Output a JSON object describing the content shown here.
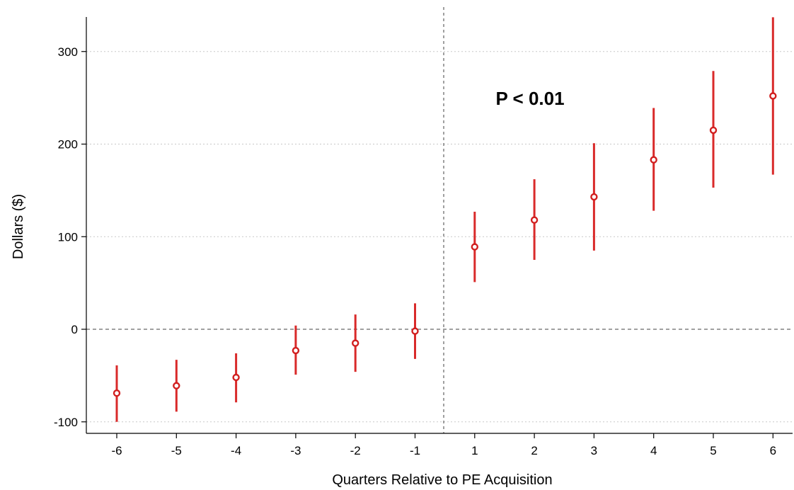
{
  "chart_data": {
    "type": "scatter",
    "subtype": "coefficient-plot-with-error-bars",
    "title": "",
    "xlabel": "Quarters Relative to PE Acquisition",
    "ylabel": "Dollars ($)",
    "categories": [
      "-6",
      "-5",
      "-4",
      "-3",
      "-2",
      "-1",
      "1",
      "2",
      "3",
      "4",
      "5",
      "6"
    ],
    "estimates": [
      -69,
      -61,
      -52,
      -23,
      -15,
      -2,
      89,
      118,
      143,
      183,
      215,
      252
    ],
    "ci_lower": [
      -100,
      -89,
      -79,
      -49,
      -46,
      -32,
      51,
      75,
      85,
      128,
      153,
      167
    ],
    "ci_upper": [
      -39,
      -33,
      -26,
      4,
      16,
      28,
      127,
      162,
      201,
      239,
      279,
      337
    ],
    "yticks": [
      "-100",
      "0",
      "100",
      "200",
      "300"
    ],
    "ylim": [
      -110,
      345
    ],
    "grid": "horizontal-dotted",
    "reference_lines": {
      "y_zero": "dashed",
      "x_between": [
        "-1",
        "1"
      ]
    },
    "annotation": "P < 0.01",
    "colors": {
      "marker": "#d11f1f",
      "error_bar": "#d92a2a",
      "reference": "#808080",
      "grid": "#c8c8c8"
    }
  }
}
